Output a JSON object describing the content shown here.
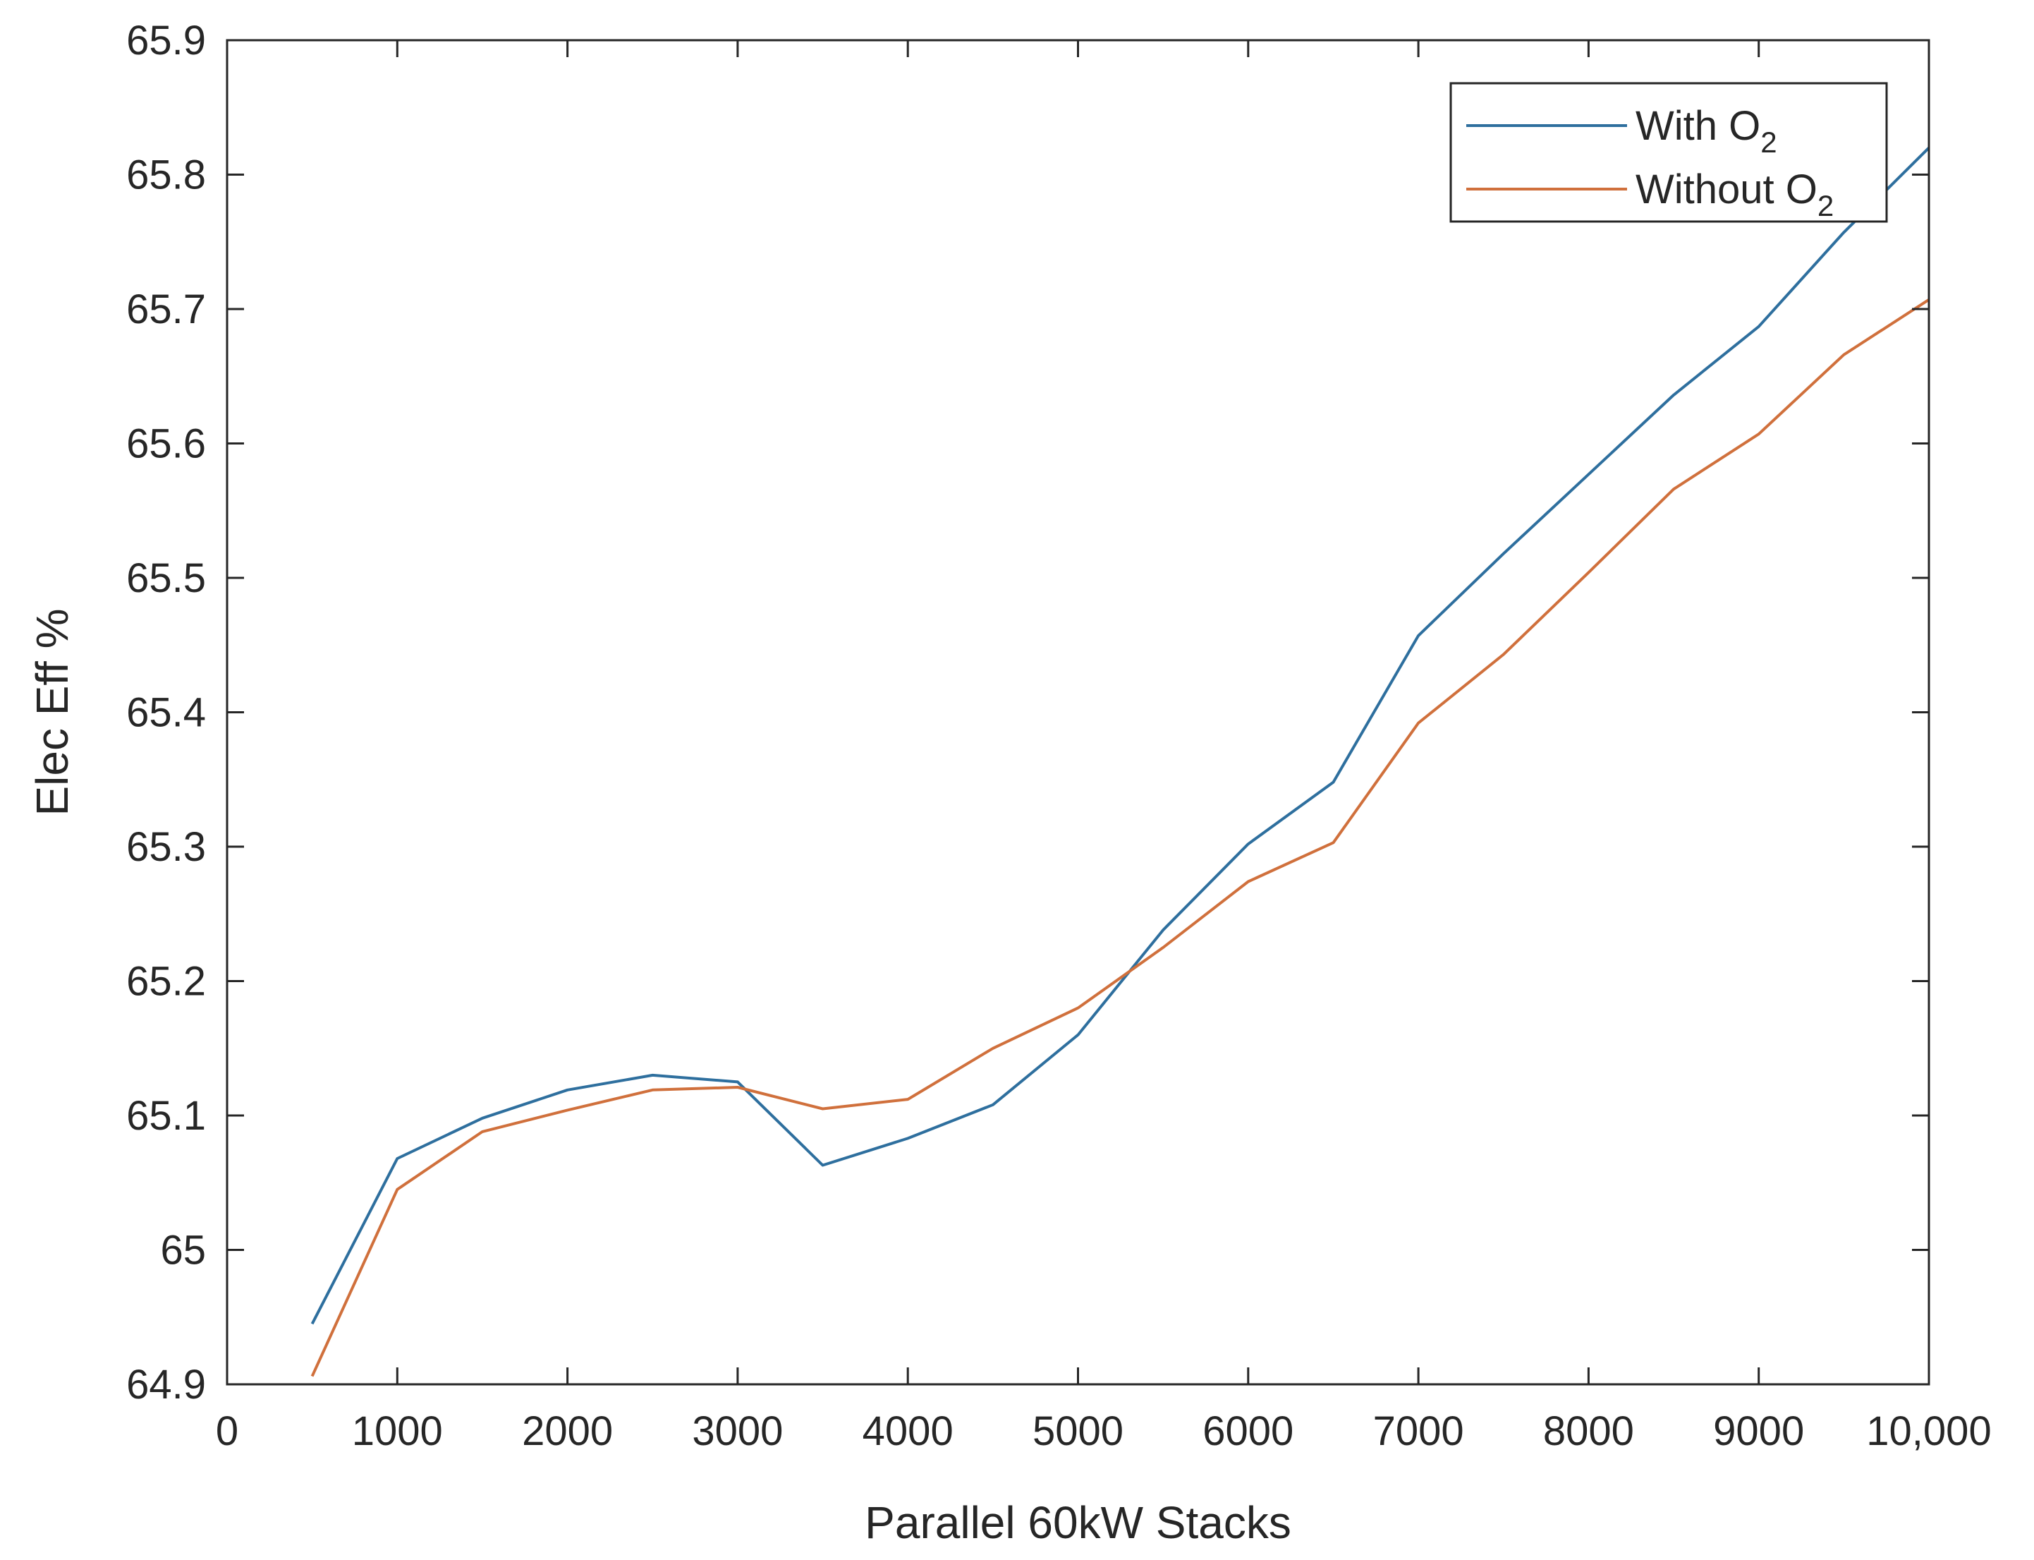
{
  "chart_data": {
    "type": "line",
    "xlabel": "Parallel 60kW Stacks",
    "ylabel": "Elec Eff %",
    "xlim": [
      0,
      10000
    ],
    "ylim": [
      64.9,
      65.9
    ],
    "x_ticks": [
      0,
      1000,
      2000,
      3000,
      4000,
      5000,
      6000,
      7000,
      8000,
      9000,
      10000
    ],
    "x_tick_labels": [
      "0",
      "1000",
      "2000",
      "3000",
      "4000",
      "5000",
      "6000",
      "7000",
      "8000",
      "9000",
      "10,000"
    ],
    "y_ticks": [
      64.9,
      65.0,
      65.1,
      65.2,
      65.3,
      65.4,
      65.5,
      65.6,
      65.7,
      65.8,
      65.9
    ],
    "y_tick_labels": [
      "64.9",
      "65",
      "65.1",
      "65.2",
      "65.3",
      "65.4",
      "65.5",
      "65.6",
      "65.7",
      "65.8",
      "65.9"
    ],
    "grid": false,
    "legend_position": "top-right",
    "x": [
      500,
      1000,
      1500,
      2000,
      2500,
      3000,
      3500,
      4000,
      4500,
      5000,
      5500,
      6000,
      6500,
      7000,
      7500,
      8000,
      8500,
      9000,
      9500,
      10000
    ],
    "series": [
      {
        "name": "With O",
        "name_subscript": "2",
        "color": "#2e6f9e",
        "values": [
          64.945,
          65.068,
          65.098,
          65.119,
          65.13,
          65.125,
          65.063,
          65.083,
          65.108,
          65.16,
          65.238,
          65.302,
          65.348,
          65.457,
          65.518,
          65.577,
          65.636,
          65.687,
          65.757,
          65.82
        ]
      },
      {
        "name": "Without O",
        "name_subscript": "2",
        "color": "#d0703c",
        "values": [
          64.906,
          65.045,
          65.088,
          65.104,
          65.119,
          65.121,
          65.105,
          65.112,
          65.15,
          65.18,
          65.225,
          65.274,
          65.303,
          65.392,
          65.443,
          65.504,
          65.566,
          65.607,
          65.666,
          65.707
        ]
      }
    ]
  }
}
